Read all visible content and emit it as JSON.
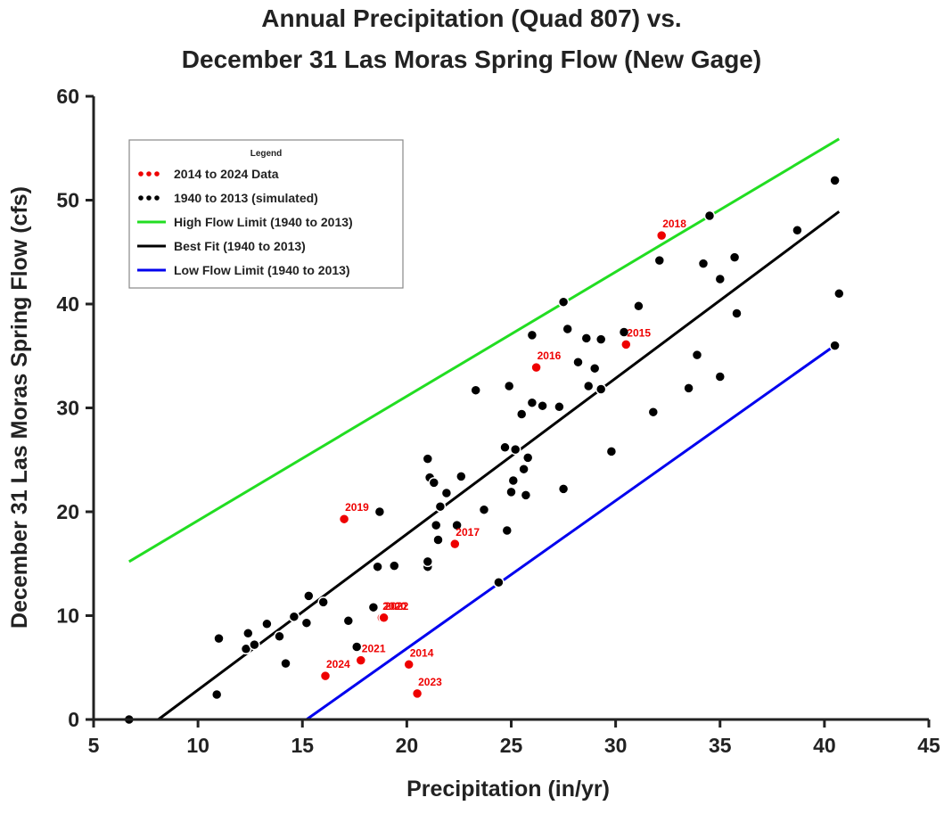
{
  "chart_data": {
    "type": "scatter",
    "title": "Annual Precipitation (Quad 807) vs.",
    "subtitle": "December 31 Las Moras Spring Flow (New Gage)",
    "xlabel": "Precipitation (in/yr)",
    "ylabel": "December 31 Las Moras Spring Flow (cfs)",
    "xlim": [
      5,
      45
    ],
    "ylim": [
      0,
      60
    ],
    "xticks": [
      "5",
      "10",
      "15",
      "20",
      "25",
      "30",
      "35",
      "40",
      "45"
    ],
    "yticks": [
      "0",
      "10",
      "20",
      "30",
      "40",
      "50",
      "60"
    ],
    "grid": false,
    "legend": {
      "title": "Legend",
      "position": "top-left",
      "entries": [
        {
          "label": "2014 to 2024 Data",
          "color": "#ee0000",
          "style": "dotted"
        },
        {
          "label": "1940 to 2013 (simulated)",
          "color": "#000000",
          "style": "dotted"
        },
        {
          "label": "High Flow Limit (1940 to 2013)",
          "color": "#22dd22",
          "style": "solid"
        },
        {
          "label": "Best Fit (1940 to 2013)",
          "color": "#000000",
          "style": "solid"
        },
        {
          "label": "Low Flow Limit (1940 to 2013)",
          "color": "#0000ee",
          "style": "solid"
        }
      ]
    },
    "series": [
      {
        "name": "2014 to 2024 Data",
        "color": "#ee0000",
        "points": [
          {
            "x": 20.1,
            "y": 5.3,
            "label": "2014"
          },
          {
            "x": 30.5,
            "y": 36.1,
            "label": "2015"
          },
          {
            "x": 26.2,
            "y": 33.9,
            "label": "2016"
          },
          {
            "x": 22.3,
            "y": 16.9,
            "label": "2017"
          },
          {
            "x": 32.2,
            "y": 46.6,
            "label": "2018"
          },
          {
            "x": 17.0,
            "y": 19.3,
            "label": "2019"
          },
          {
            "x": 18.8,
            "y": 9.8,
            "label": "2020"
          },
          {
            "x": 17.8,
            "y": 5.7,
            "label": "2021"
          },
          {
            "x": 18.9,
            "y": 9.8,
            "label": "2022"
          },
          {
            "x": 20.5,
            "y": 2.5,
            "label": "2023"
          },
          {
            "x": 16.1,
            "y": 4.2,
            "label": "2024"
          }
        ]
      },
      {
        "name": "1940 to 2013 (simulated)",
        "color": "#000000",
        "points": [
          {
            "x": 6.7,
            "y": 0.0
          },
          {
            "x": 11.0,
            "y": 7.8
          },
          {
            "x": 10.9,
            "y": 2.4
          },
          {
            "x": 12.3,
            "y": 6.8
          },
          {
            "x": 12.4,
            "y": 8.3
          },
          {
            "x": 12.7,
            "y": 7.2
          },
          {
            "x": 13.3,
            "y": 9.2
          },
          {
            "x": 13.9,
            "y": 8.0
          },
          {
            "x": 14.2,
            "y": 5.4
          },
          {
            "x": 14.6,
            "y": 9.9
          },
          {
            "x": 15.2,
            "y": 9.3
          },
          {
            "x": 15.3,
            "y": 11.9
          },
          {
            "x": 16.0,
            "y": 11.3
          },
          {
            "x": 17.2,
            "y": 9.5
          },
          {
            "x": 17.6,
            "y": 7.0
          },
          {
            "x": 18.4,
            "y": 10.8
          },
          {
            "x": 18.6,
            "y": 14.7
          },
          {
            "x": 18.7,
            "y": 20.0
          },
          {
            "x": 19.4,
            "y": 14.8
          },
          {
            "x": 21.0,
            "y": 14.7
          },
          {
            "x": 21.0,
            "y": 15.2
          },
          {
            "x": 21.0,
            "y": 25.1
          },
          {
            "x": 21.1,
            "y": 23.3
          },
          {
            "x": 21.3,
            "y": 22.8
          },
          {
            "x": 21.4,
            "y": 18.7
          },
          {
            "x": 21.5,
            "y": 17.3
          },
          {
            "x": 21.6,
            "y": 20.5
          },
          {
            "x": 21.9,
            "y": 21.8
          },
          {
            "x": 22.4,
            "y": 18.7
          },
          {
            "x": 22.6,
            "y": 23.4
          },
          {
            "x": 23.3,
            "y": 31.7
          },
          {
            "x": 23.7,
            "y": 20.2
          },
          {
            "x": 24.4,
            "y": 13.2
          },
          {
            "x": 24.7,
            "y": 26.2
          },
          {
            "x": 24.8,
            "y": 18.2
          },
          {
            "x": 24.9,
            "y": 32.1
          },
          {
            "x": 25.0,
            "y": 21.9
          },
          {
            "x": 25.1,
            "y": 23.0
          },
          {
            "x": 25.2,
            "y": 26.0
          },
          {
            "x": 25.5,
            "y": 29.4
          },
          {
            "x": 25.6,
            "y": 24.1
          },
          {
            "x": 25.7,
            "y": 21.6
          },
          {
            "x": 25.8,
            "y": 25.2
          },
          {
            "x": 26.0,
            "y": 37.0
          },
          {
            "x": 26.0,
            "y": 30.5
          },
          {
            "x": 26.5,
            "y": 30.2
          },
          {
            "x": 27.3,
            "y": 30.1
          },
          {
            "x": 27.5,
            "y": 22.2
          },
          {
            "x": 27.5,
            "y": 40.2
          },
          {
            "x": 27.7,
            "y": 37.6
          },
          {
            "x": 28.2,
            "y": 34.4
          },
          {
            "x": 28.6,
            "y": 36.7
          },
          {
            "x": 28.7,
            "y": 32.1
          },
          {
            "x": 29.0,
            "y": 33.8
          },
          {
            "x": 29.3,
            "y": 36.6
          },
          {
            "x": 29.3,
            "y": 31.8
          },
          {
            "x": 29.8,
            "y": 25.8
          },
          {
            "x": 30.4,
            "y": 37.3
          },
          {
            "x": 31.1,
            "y": 39.8
          },
          {
            "x": 31.8,
            "y": 29.6
          },
          {
            "x": 32.1,
            "y": 44.2
          },
          {
            "x": 33.5,
            "y": 31.9
          },
          {
            "x": 33.9,
            "y": 35.1
          },
          {
            "x": 34.2,
            "y": 43.9
          },
          {
            "x": 34.5,
            "y": 48.5
          },
          {
            "x": 35.0,
            "y": 42.4
          },
          {
            "x": 35.0,
            "y": 33.0
          },
          {
            "x": 35.7,
            "y": 44.5
          },
          {
            "x": 35.8,
            "y": 39.1
          },
          {
            "x": 38.7,
            "y": 47.1
          },
          {
            "x": 40.5,
            "y": 51.9
          },
          {
            "x": 40.5,
            "y": 36.0
          },
          {
            "x": 40.7,
            "y": 41.0
          }
        ]
      }
    ],
    "lines": [
      {
        "name": "High Flow Limit (1940 to 2013)",
        "color": "#22dd22",
        "points": [
          {
            "x": 6.7,
            "y": 15.2
          },
          {
            "x": 40.7,
            "y": 55.9
          }
        ]
      },
      {
        "name": "Best Fit (1940 to 2013)",
        "color": "#000000",
        "points": [
          {
            "x": 8.1,
            "y": 0.0
          },
          {
            "x": 40.7,
            "y": 48.9
          }
        ]
      },
      {
        "name": "Low Flow Limit (1940 to 2013)",
        "color": "#0000ee",
        "points": [
          {
            "x": 6.7,
            "y": 0.0
          },
          {
            "x": 15.2,
            "y": 0.0
          },
          {
            "x": 40.7,
            "y": 36.3
          }
        ]
      }
    ]
  }
}
